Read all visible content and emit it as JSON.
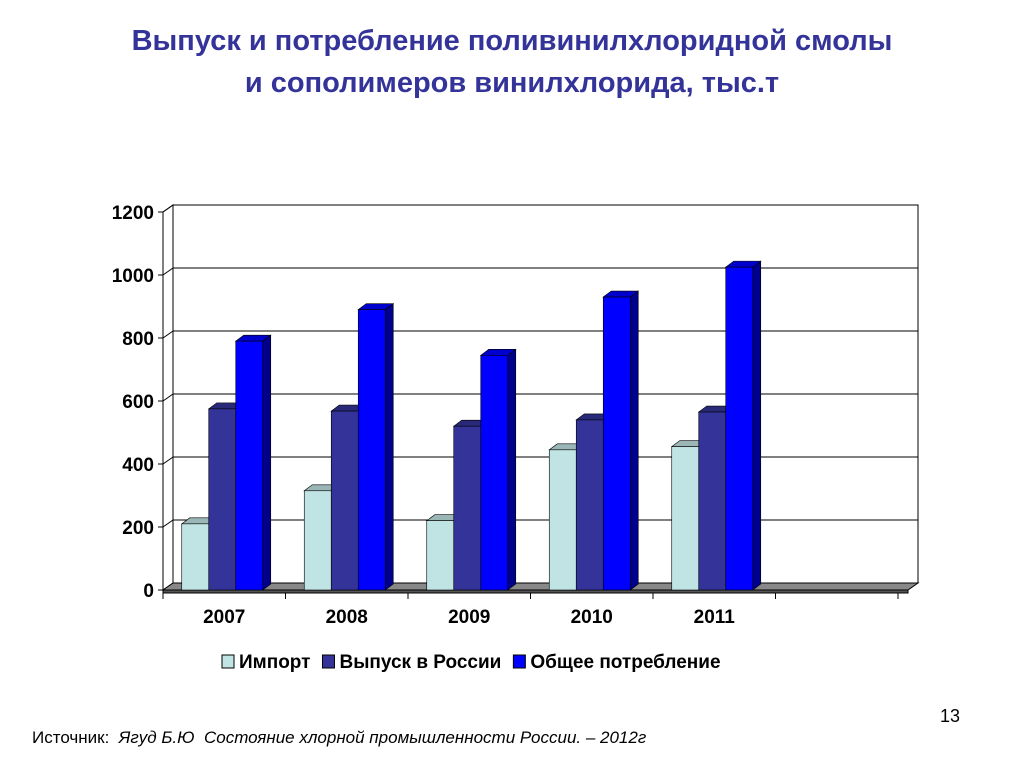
{
  "title": {
    "line1": "Выпуск и потребление поливинилхлоридной смолы",
    "line2": "и сополимеров винилхлорида, тыс.т"
  },
  "slide_number": "13",
  "source": {
    "label": "Источник:",
    "author": "Ягуд Б.Ю",
    "work": "Состояние хлорной промышленности России. – 2012г"
  },
  "colors": {
    "title": "#333399",
    "import": "#c0e4e4",
    "production": "#333399",
    "consumption": "#0000ff"
  },
  "chart_data": {
    "type": "bar",
    "title": "",
    "xlabel": "",
    "ylabel": "",
    "categories": [
      "2007",
      "2008",
      "2009",
      "2010",
      "2011",
      ""
    ],
    "ylim": [
      0,
      1200
    ],
    "yticks": [
      0,
      200,
      400,
      600,
      800,
      1000,
      1200
    ],
    "grid": true,
    "legend_position": "bottom",
    "series": [
      {
        "name": "Импорт",
        "color": "#c0e4e4",
        "values": [
          210,
          315,
          220,
          445,
          455,
          null
        ]
      },
      {
        "name": "Выпуск в России",
        "color": "#333399",
        "values": [
          575,
          568,
          520,
          540,
          565,
          null
        ]
      },
      {
        "name": "Общее потребление",
        "color": "#0000ff",
        "values": [
          790,
          890,
          745,
          930,
          1025,
          null
        ]
      }
    ]
  }
}
